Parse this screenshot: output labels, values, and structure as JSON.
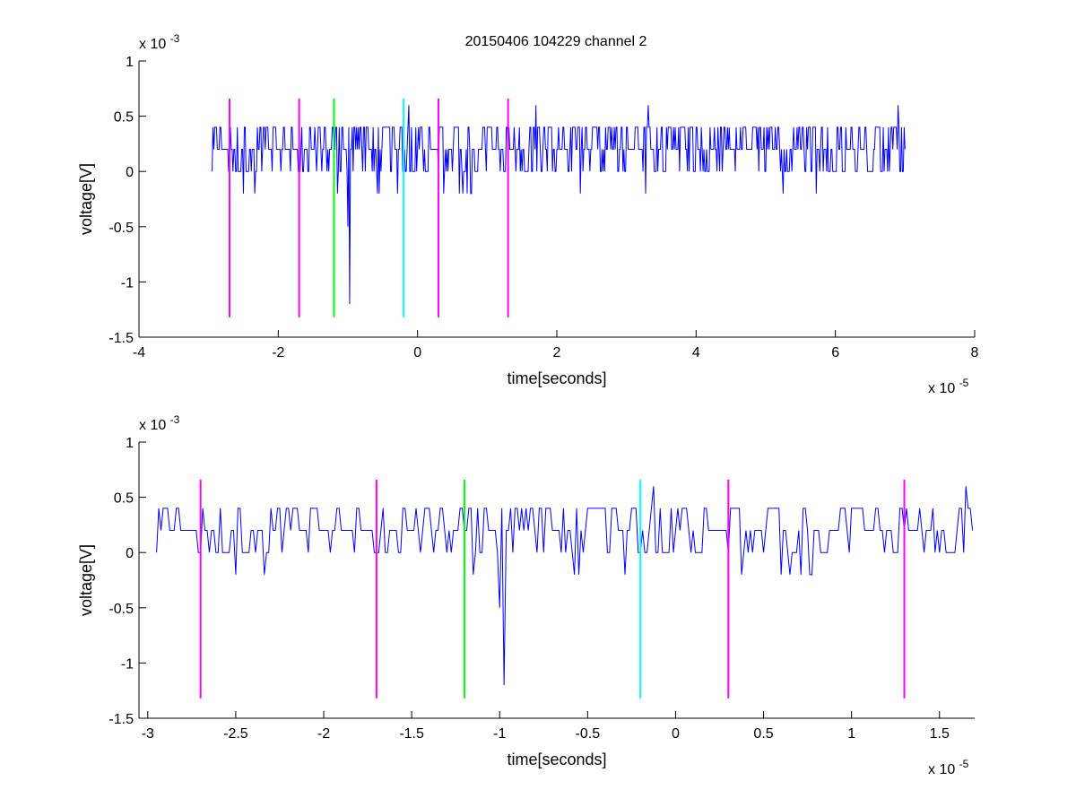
{
  "figure_title": "20150406 104229 channel 2",
  "colors": {
    "signal": "#0000ff",
    "marker_magenta": "#ff00ff",
    "marker_green": "#00ff00",
    "marker_cyan": "#00ffff",
    "axes": "#000000",
    "background": "#ffffff"
  },
  "chart_data": [
    {
      "type": "line",
      "title": "20150406 104229 channel 2",
      "xlabel": "time[seconds]",
      "ylabel": "voltage[V]",
      "x_exponent_label": "x 10",
      "x_exponent": "-5",
      "y_exponent_label": "x 10",
      "y_exponent": "-3",
      "x_scale": 1e-05,
      "y_scale": 0.001,
      "xlim": [
        -4,
        8
      ],
      "ylim": [
        -1.5,
        1
      ],
      "x_ticks": [
        -4,
        -2,
        0,
        2,
        4,
        6,
        8
      ],
      "x_tick_labels": [
        "-4",
        "-2",
        "0",
        "2",
        "4",
        "6",
        "8"
      ],
      "y_ticks": [
        1,
        0.5,
        0,
        -0.5,
        -1,
        -1.5
      ],
      "y_tick_labels": [
        "1",
        "0.5",
        "0",
        "-0.5",
        "-1",
        "-1.5"
      ],
      "grid": false,
      "series": [
        {
          "x_range": [
            -2.95,
            7.0
          ],
          "baseline": 0.2,
          "levels": [
            0.0,
            0.2,
            0.4
          ],
          "notable_points": [
            {
              "x": -1.0,
              "y": -0.5
            },
            {
              "x": -0.97,
              "y": -1.2
            },
            {
              "x": -1.15,
              "y": -0.2
            },
            {
              "x": 1.7,
              "y": 0.6
            },
            {
              "x": 6.9,
              "y": 0.6
            }
          ]
        }
      ],
      "markers": [
        {
          "x": -2.7,
          "color": "magenta",
          "y_range": [
            -1.32,
            0.66
          ]
        },
        {
          "x": -1.7,
          "color": "magenta",
          "y_range": [
            -1.32,
            0.66
          ]
        },
        {
          "x": -1.2,
          "color": "green",
          "y_range": [
            -1.32,
            0.66
          ]
        },
        {
          "x": -0.2,
          "color": "cyan",
          "y_range": [
            -1.32,
            0.66
          ]
        },
        {
          "x": 0.3,
          "color": "magenta",
          "y_range": [
            -1.32,
            0.66
          ]
        },
        {
          "x": 1.3,
          "color": "magenta",
          "y_range": [
            -1.32,
            0.66
          ]
        }
      ]
    },
    {
      "type": "line",
      "title": "",
      "xlabel": "time[seconds]",
      "ylabel": "voltage[V]",
      "x_exponent_label": "x 10",
      "x_exponent": "-5",
      "y_exponent_label": "x 10",
      "y_exponent": "-3",
      "x_scale": 1e-05,
      "y_scale": 0.001,
      "xlim": [
        -3.05,
        1.7
      ],
      "ylim": [
        -1.5,
        1
      ],
      "x_ticks": [
        -3,
        -2.5,
        -2,
        -1.5,
        -1,
        -0.5,
        0,
        0.5,
        1,
        1.5
      ],
      "x_tick_labels": [
        "-3",
        "-2.5",
        "-2",
        "-1.5",
        "-1",
        "-0.5",
        "0",
        "0.5",
        "1",
        "1.5"
      ],
      "y_ticks": [
        1,
        0.5,
        0,
        -0.5,
        -1,
        -1.5
      ],
      "y_tick_labels": [
        "1",
        "0.5",
        "0",
        "-0.5",
        "-1",
        "-1.5"
      ],
      "grid": false,
      "series": [
        {
          "x_range": [
            -2.95,
            1.7
          ],
          "baseline": 0.2,
          "levels": [
            0.0,
            0.2,
            0.4
          ],
          "notable_points": [
            {
              "x": -1.0,
              "y": -0.5
            },
            {
              "x": -0.97,
              "y": -1.2
            },
            {
              "x": -1.15,
              "y": -0.2
            },
            {
              "x": 1.65,
              "y": 0.6
            }
          ]
        }
      ],
      "markers": [
        {
          "x": -2.7,
          "color": "magenta",
          "y_range": [
            -1.32,
            0.66
          ]
        },
        {
          "x": -1.7,
          "color": "magenta",
          "y_range": [
            -1.32,
            0.66
          ]
        },
        {
          "x": -1.2,
          "color": "green",
          "y_range": [
            -1.32,
            0.66
          ]
        },
        {
          "x": -0.2,
          "color": "cyan",
          "y_range": [
            -1.32,
            0.66
          ]
        },
        {
          "x": 0.3,
          "color": "magenta",
          "y_range": [
            -1.32,
            0.66
          ]
        },
        {
          "x": 1.3,
          "color": "magenta",
          "y_range": [
            -1.32,
            0.66
          ]
        }
      ]
    }
  ]
}
